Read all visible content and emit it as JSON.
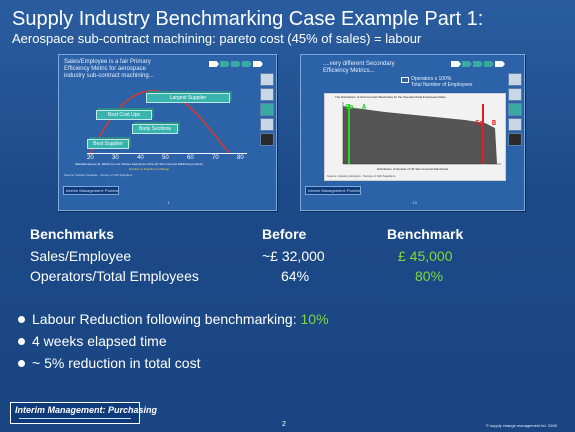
{
  "title": "Supply Industry Benchmarking Case Example Part 1:",
  "subtitle": "Aerospace sub-contract machining: pareto cost (45% of sales) = labour",
  "thumb1": {
    "text_line1": "Sales/Employee is a fair Primary",
    "text_line2": "Efficiency Metric for aerospace",
    "text_line3": "industry sub-contract machining...",
    "bars": [
      "Largest Supplier",
      "Best Cost Ups",
      "Body Sections",
      "Best Supplier"
    ],
    "ticks": [
      "20",
      "30",
      "40",
      "50",
      "60",
      "70",
      "80"
    ],
    "axis_caption": "Sales/Employee (£, 000s) for Low Volume Segments of the UK Sub-Contract Machining Industry",
    "axis_caption2": "Number of Suppliers in Range",
    "source": "Source: Industry Analysis - Survey of 100 Suppliers",
    "footer": "Interim Management: Purchasing",
    "page": "1"
  },
  "thumb2": {
    "text_line1": "....very different Secondary",
    "text_line2": "Efficiency Metrics...",
    "legend_line1": "Operators x 100%",
    "legend_line2": "Total Number of Employees",
    "chart_title": "The Distribution of Sub-Contract Machinists for the Operator/Total Employees Ratio",
    "label_a": "Co. A",
    "label_b": "Co. B",
    "x_caption": "Distribution of Sample of UK Sub-Contract Machinists",
    "source": "Source: Industry Analysis - Survey of 100 Suppliers",
    "footer": "Interim Management: Purchasing",
    "page": "10"
  },
  "table": {
    "headers": [
      "Benchmarks",
      "Before",
      "Benchmark"
    ],
    "rows": [
      {
        "label": "Sales/Employee",
        "before": "~£ 32,000",
        "benchmark": "£ 45,000"
      },
      {
        "label": "Operators/Total Employees",
        "before": "64%",
        "benchmark": "80%"
      }
    ]
  },
  "bullets": {
    "item1": "Labour Reduction following benchmarking: ",
    "item1_value": "10%",
    "item2": "4 weeks elapsed time",
    "item3": "~ 5% reduction in total cost"
  },
  "logo": {
    "name": "Interim Management: Purchasing"
  },
  "page_number": "2",
  "copyright": "© supply change management ltd. 2008",
  "colors": {
    "background": "#1e4e8c",
    "accent_green": "#7dda3a",
    "teal": "#39b3ad"
  }
}
